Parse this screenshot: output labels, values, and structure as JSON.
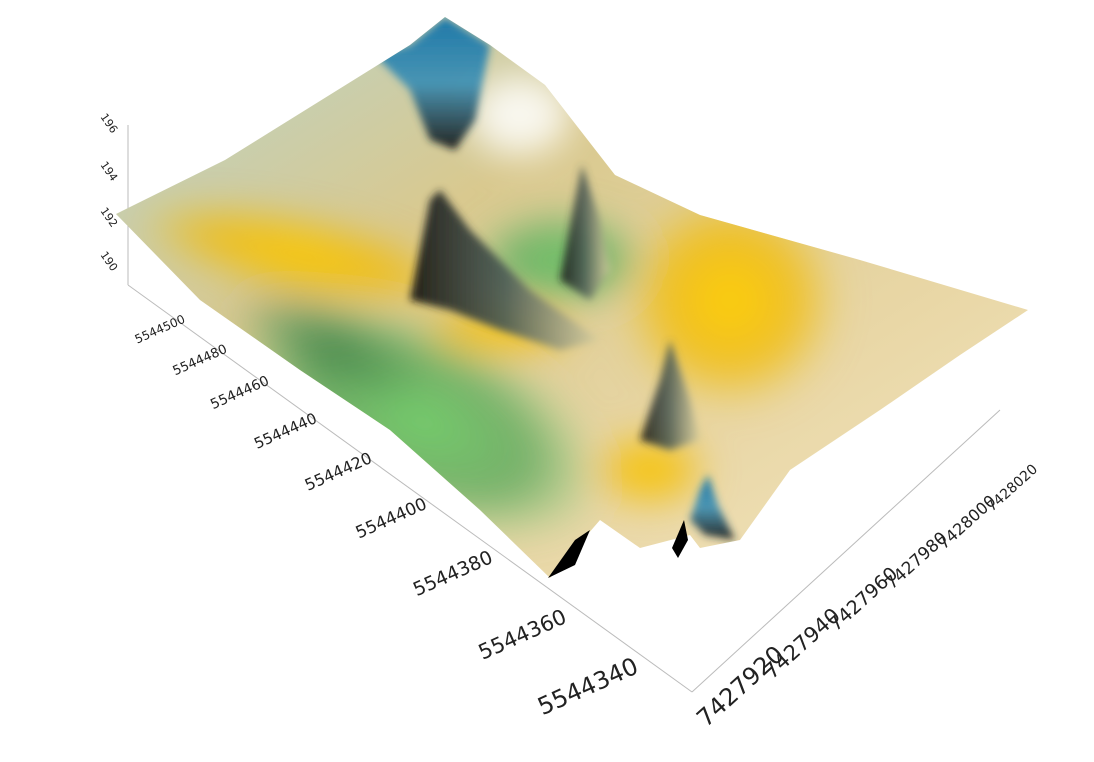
{
  "chart_data": {
    "type": "surface3d",
    "title": "",
    "colorscale": [
      "#3f7f47",
      "#7ecf7e",
      "#b2d3b0",
      "#f2c100",
      "#f7e7b5",
      "#000000",
      "#0077b6",
      "#ffffff"
    ],
    "x_axis": {
      "label": "",
      "ticks": [
        "7427920",
        "7427940",
        "7427960",
        "7427980",
        "7428000",
        "7428020"
      ],
      "range": [
        7427910,
        7428030
      ]
    },
    "y_axis": {
      "label": "",
      "ticks": [
        "5544340",
        "5544360",
        "5544380",
        "5544400",
        "5544420",
        "5544440",
        "5544460",
        "5544480",
        "5544500"
      ],
      "range": [
        5544330,
        5544510
      ]
    },
    "z_axis": {
      "label": "",
      "ticks": [
        "190",
        "192",
        "194",
        "196"
      ],
      "range": [
        189,
        196.5
      ]
    },
    "peaks": [
      {
        "x": 7427935,
        "y": 5544500,
        "z": 196
      },
      {
        "x": 7427950,
        "y": 5544440,
        "z": 194.5
      },
      {
        "x": 7427975,
        "y": 5544470,
        "z": 193.5
      },
      {
        "x": 7428000,
        "y": 5544420,
        "z": 193
      },
      {
        "x": 7428010,
        "y": 5544380,
        "z": 192
      }
    ]
  }
}
